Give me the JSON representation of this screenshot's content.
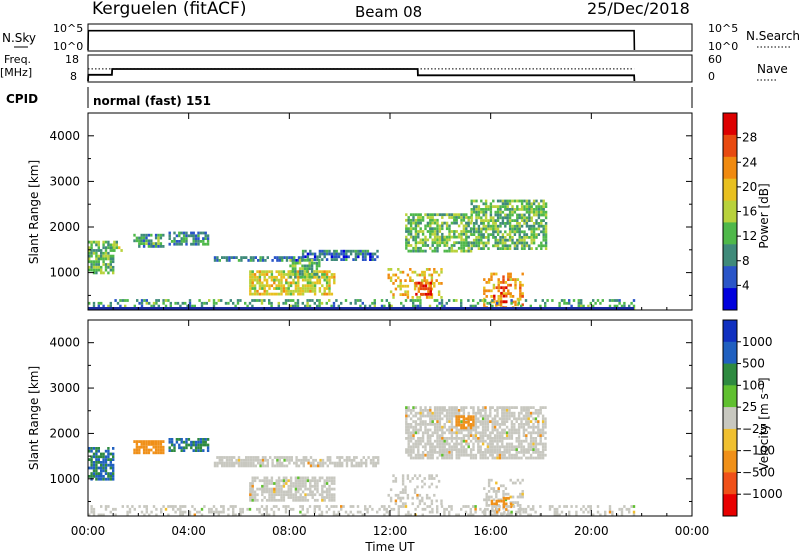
{
  "header": {
    "station": "Kerguelen (fitACF)",
    "beam": "Beam 08",
    "date": "25/Dec/2018"
  },
  "status_panels": {
    "nsky_label": "N.Sky",
    "nsky_ticks": [
      "10^5",
      "10^0"
    ],
    "nsearch_label": "N.Search",
    "nsearch_ticks": [
      "10^5",
      "10^0"
    ],
    "freq_label": "Freq.",
    "freq_unit": "[MHz]",
    "freq_ticks": [
      "18",
      "8"
    ],
    "nave_label": "Nave",
    "nave_ticks": [
      "60",
      "0"
    ],
    "cpid_label": "CPID",
    "cpid_value": "normal (fast) 151"
  },
  "chart_data": [
    {
      "type": "heatmap",
      "name": "power",
      "ylabel": "Slant Range [km]",
      "ylim": [
        180,
        4500
      ],
      "yticks": [
        "1000",
        "2000",
        "3000",
        "4000"
      ],
      "xlim": [
        "00:00",
        "24:00"
      ],
      "colorbar_label": "Power [dB]",
      "colorbar_ticks": [
        "4",
        "8",
        "12",
        "16",
        "20",
        "24",
        "28"
      ],
      "colorscale": [
        "#0000dd",
        "#2a55c8",
        "#3f8a7a",
        "#4fb84a",
        "#b8d23c",
        "#e8c020",
        "#f08a10",
        "#e84a10",
        "#dd0000"
      ],
      "range_clip_db": [
        0,
        32
      ],
      "patches": [
        {
          "t": [
            0.0,
            1.0
          ],
          "r": [
            1000,
            1700
          ],
          "level": 12
        },
        {
          "t": [
            1.0,
            1.3
          ],
          "r": [
            1500,
            1700
          ],
          "level": 14
        },
        {
          "t": [
            1.8,
            3.0
          ],
          "r": [
            1600,
            1850
          ],
          "level": 10
        },
        {
          "t": [
            3.2,
            4.8
          ],
          "r": [
            1600,
            1900
          ],
          "level": 8
        },
        {
          "t": [
            5.0,
            8.5
          ],
          "r": [
            1260,
            1360
          ],
          "level": 6
        },
        {
          "t": [
            8.5,
            11.5
          ],
          "r": [
            1300,
            1500
          ],
          "level": 6
        },
        {
          "t": [
            6.4,
            9.8
          ],
          "r": [
            500,
            1050
          ],
          "level": 18
        },
        {
          "t": [
            8.0,
            9.2
          ],
          "r": [
            900,
            1300
          ],
          "level": 12
        },
        {
          "t": [
            11.9,
            14.0
          ],
          "r": [
            450,
            1100
          ],
          "level": 20
        },
        {
          "t": [
            13.0,
            13.6
          ],
          "r": [
            550,
            800
          ],
          "level": 28
        },
        {
          "t": [
            12.6,
            15.2
          ],
          "r": [
            1450,
            2300
          ],
          "level": 12
        },
        {
          "t": [
            15.2,
            18.2
          ],
          "r": [
            1500,
            2600
          ],
          "level": 12
        },
        {
          "t": [
            15.7,
            17.3
          ],
          "r": [
            250,
            1000
          ],
          "level": 22
        },
        {
          "t": [
            16.0,
            16.6
          ],
          "r": [
            350,
            700
          ],
          "level": 30
        },
        {
          "t": [
            0.0,
            21.7
          ],
          "r": [
            180,
            420
          ],
          "level": 10
        }
      ]
    },
    {
      "type": "heatmap",
      "name": "velocity",
      "ylabel": "Slant Range [km]",
      "xlabel": "Time UT",
      "ylim": [
        180,
        4500
      ],
      "yticks": [
        "1000",
        "2000",
        "3000",
        "4000"
      ],
      "xticks": [
        "00:00",
        "04:00",
        "08:00",
        "12:00",
        "16:00",
        "20:00",
        "00:00"
      ],
      "colorbar_label": "Velocity [m s⁻¹]",
      "colorbar_ticks": [
        "1000",
        "500",
        "100",
        "25",
        "−25",
        "−100",
        "−500",
        "−1000"
      ],
      "colorscale": [
        "#1030c0",
        "#2060c0",
        "#2e8a40",
        "#60c030",
        "#c8c8c0",
        "#f0c030",
        "#f09018",
        "#f05018",
        "#e80000"
      ],
      "patches": [
        {
          "t": [
            0.0,
            1.0
          ],
          "r": [
            1000,
            1700
          ],
          "v": 100
        },
        {
          "t": [
            1.8,
            3.0
          ],
          "r": [
            1600,
            1850
          ],
          "v": -300
        },
        {
          "t": [
            3.2,
            4.8
          ],
          "r": [
            1600,
            1900
          ],
          "v": 100
        },
        {
          "t": [
            5.0,
            11.5
          ],
          "r": [
            1260,
            1500
          ],
          "v": 0
        },
        {
          "t": [
            6.4,
            9.8
          ],
          "r": [
            500,
            1050
          ],
          "v": 0
        },
        {
          "t": [
            11.9,
            14.0
          ],
          "r": [
            450,
            1100
          ],
          "v": 0
        },
        {
          "t": [
            12.6,
            18.2
          ],
          "r": [
            1450,
            2600
          ],
          "v": 0
        },
        {
          "t": [
            15.7,
            17.3
          ],
          "r": [
            250,
            1000
          ],
          "v": 0
        },
        {
          "t": [
            16.0,
            16.8
          ],
          "r": [
            300,
            600
          ],
          "v": -120
        },
        {
          "t": [
            14.6,
            15.3
          ],
          "r": [
            2100,
            2400
          ],
          "v": -120
        },
        {
          "t": [
            0.0,
            21.7
          ],
          "r": [
            180,
            420
          ],
          "v": 0
        }
      ]
    },
    {
      "type": "line",
      "name": "nsky-nsearch",
      "series": [
        {
          "x": [
            0,
            0.01,
            21.7,
            21.71
          ],
          "y_log": [
            0,
            4.2,
            4.2,
            0
          ]
        }
      ],
      "xlim": [
        0,
        24
      ]
    },
    {
      "type": "line",
      "name": "freq-nave",
      "series": [
        {
          "x": [
            0,
            0.01,
            0.95,
            0.96,
            13.1,
            13.11,
            21.7,
            21.71
          ],
          "freq": [
            8,
            10.5,
            10.5,
            12.8,
            12.8,
            10.3,
            10.3,
            8
          ]
        },
        {
          "x": [
            0,
            21.7
          ],
          "nave": [
            29,
            29
          ]
        }
      ],
      "xlim": [
        0,
        24
      ]
    }
  ]
}
